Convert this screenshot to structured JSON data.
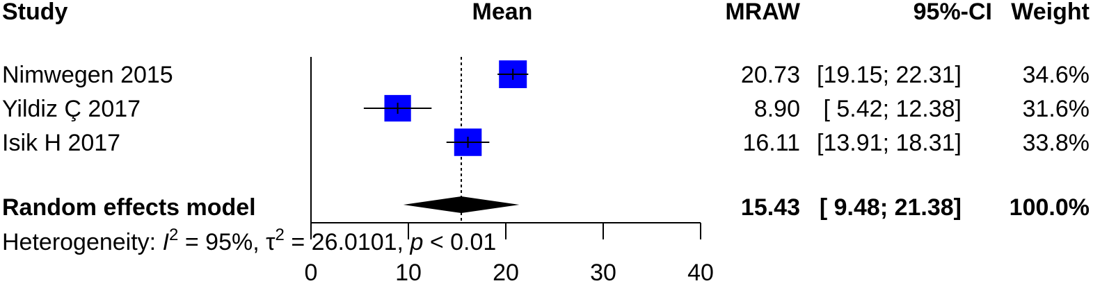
{
  "chart_data": {
    "type": "forest",
    "headers": {
      "study": "Study",
      "mean": "Mean",
      "estimate": "MRAW",
      "ci": "95%-CI",
      "weight": "Weight"
    },
    "studies": [
      {
        "name": "Nimwegen 2015",
        "mean": 20.73,
        "lower": 19.15,
        "upper": 22.31,
        "weight": 34.6,
        "mean_label": "20.73",
        "ci_label": "[19.15; 22.31]",
        "weight_label": "34.6%"
      },
      {
        "name": "Yildiz Ç 2017",
        "mean": 8.9,
        "lower": 5.42,
        "upper": 12.38,
        "weight": 31.6,
        "mean_label": "8.90",
        "ci_label": "[ 5.42; 12.38]",
        "weight_label": "31.6%"
      },
      {
        "name": "Isik H 2017",
        "mean": 16.11,
        "lower": 13.91,
        "upper": 18.31,
        "weight": 33.8,
        "mean_label": "16.11",
        "ci_label": "[13.91; 18.31]",
        "weight_label": "33.8%"
      }
    ],
    "model": {
      "name": "Random effects model",
      "mean": 15.43,
      "lower": 9.48,
      "upper": 21.38,
      "weight": 100,
      "mean_label": "15.43",
      "ci_label": "[ 9.48; 21.38]",
      "weight_label": "100.0%"
    },
    "heterogeneity": [
      "Heterogeneity: ",
      "I",
      "2",
      " = 95%, ",
      "τ",
      "2",
      " = 26.0101, ",
      "p",
      " < 0.01"
    ],
    "color": "#0000ff",
    "xlim": [
      0,
      40
    ],
    "xticks": [
      0,
      10,
      20,
      30,
      40
    ]
  }
}
